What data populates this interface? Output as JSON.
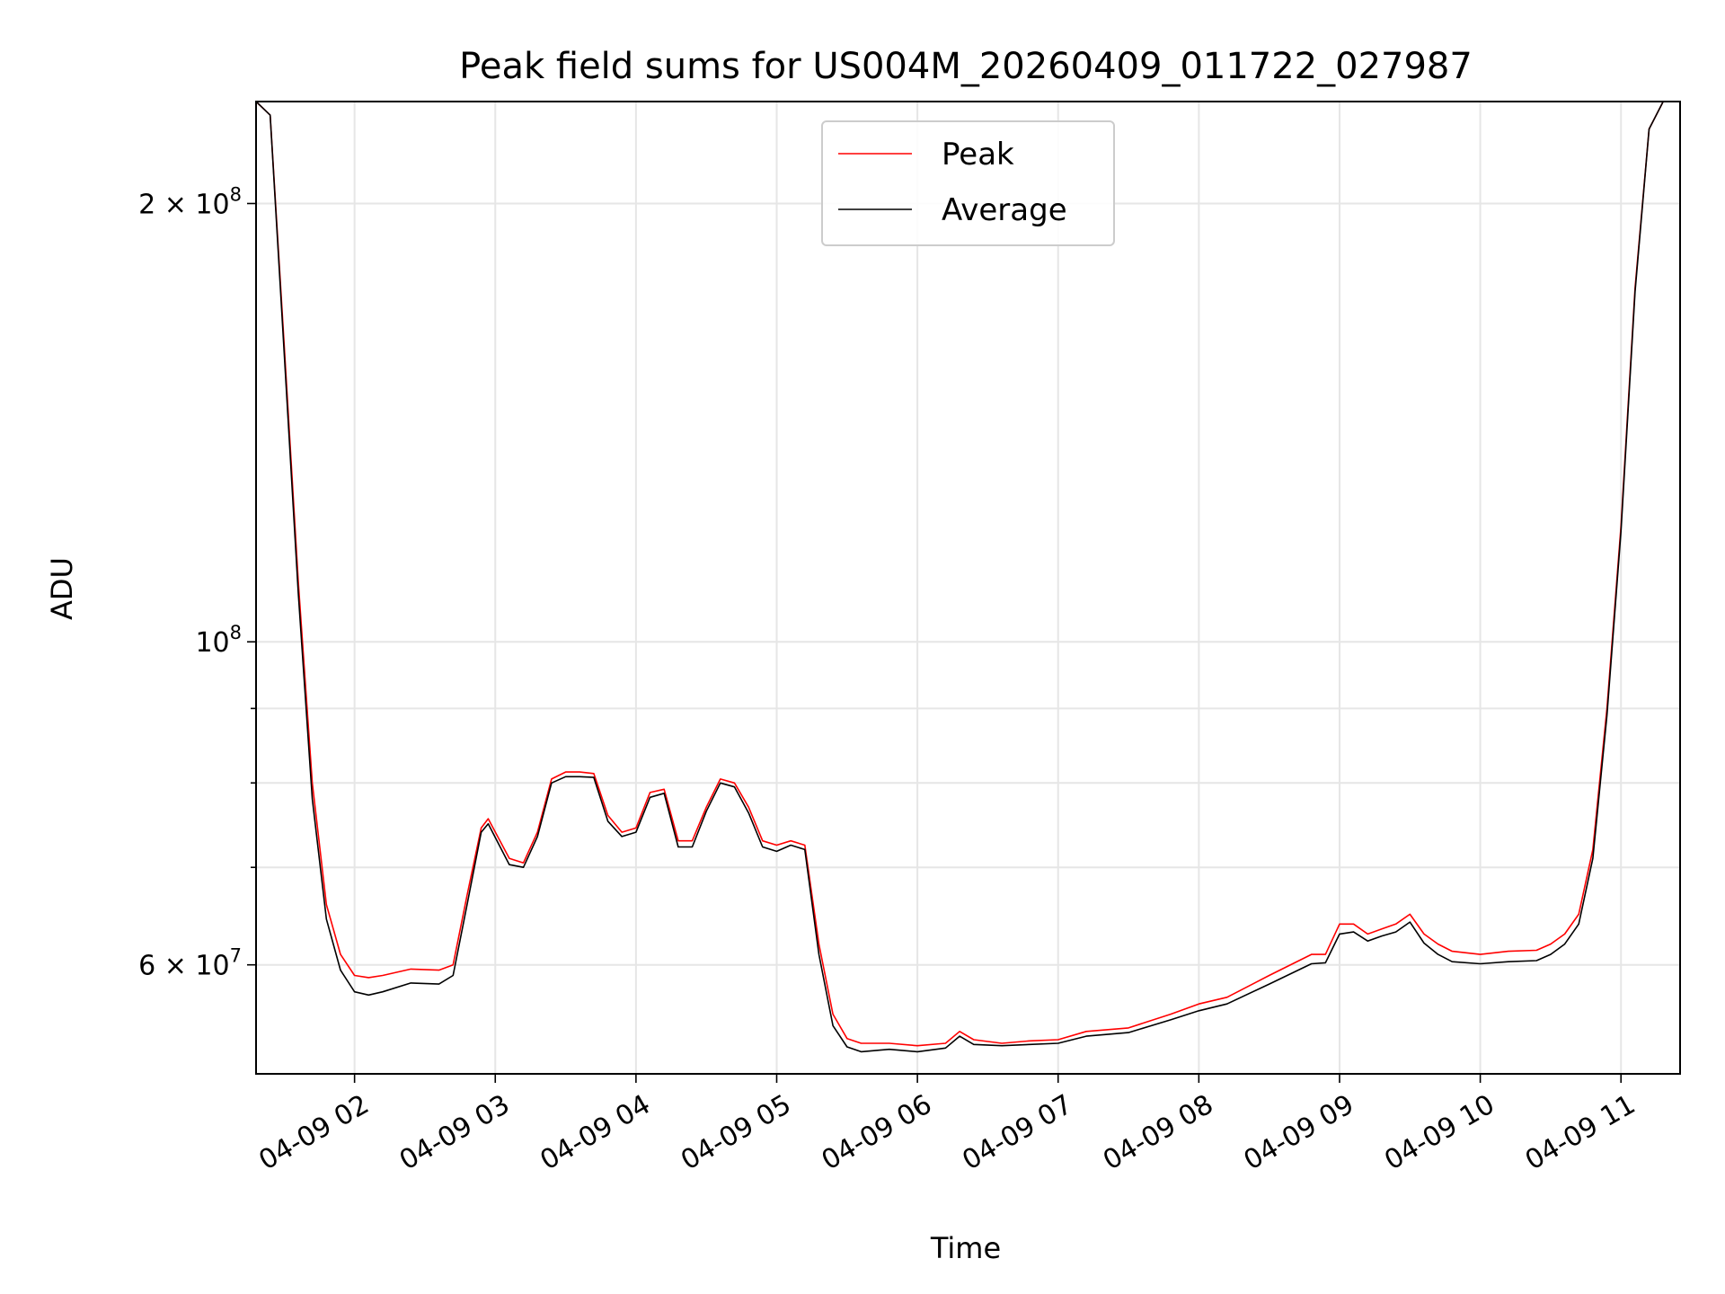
{
  "chart_data": {
    "type": "line",
    "title": "Peak field sums for US004M_20260409_011722_027987",
    "xlabel": "Time",
    "ylabel": "ADU",
    "y_scale": "log",
    "xlim": [
      1.3,
      11.42
    ],
    "ylim": [
      50500000,
      235000000
    ],
    "grid": true,
    "legend_position": "upper-center",
    "x_unit": "hours since 04-09 00:00",
    "x_ticks": [
      {
        "value": 2,
        "label": "04-09 02"
      },
      {
        "value": 3,
        "label": "04-09 03"
      },
      {
        "value": 4,
        "label": "04-09 04"
      },
      {
        "value": 5,
        "label": "04-09 05"
      },
      {
        "value": 6,
        "label": "04-09 06"
      },
      {
        "value": 7,
        "label": "04-09 07"
      },
      {
        "value": 8,
        "label": "04-09 08"
      },
      {
        "value": 9,
        "label": "04-09 09"
      },
      {
        "value": 10,
        "label": "04-09 10"
      },
      {
        "value": 11,
        "label": "04-09 11"
      }
    ],
    "y_ticks_major": [
      {
        "value": 100000000,
        "label_base": "10",
        "label_exp": "8",
        "label_coef": ""
      },
      {
        "value": 200000000,
        "label_base": "10",
        "label_exp": "8",
        "label_coef": "2 × "
      },
      {
        "value": 60000000,
        "label_base": "10",
        "label_exp": "7",
        "label_coef": "6 × "
      }
    ],
    "y_ticks_minor": [
      70000000,
      80000000,
      90000000
    ],
    "series": [
      {
        "name": "Peak",
        "color": "#ff0000",
        "x": [
          1.3,
          1.4,
          1.5,
          1.6,
          1.7,
          1.8,
          1.9,
          2.0,
          2.1,
          2.2,
          2.4,
          2.6,
          2.7,
          2.8,
          2.9,
          2.95,
          3.1,
          3.2,
          3.3,
          3.4,
          3.5,
          3.6,
          3.7,
          3.8,
          3.9,
          4.0,
          4.1,
          4.2,
          4.3,
          4.4,
          4.5,
          4.6,
          4.7,
          4.8,
          4.9,
          5.0,
          5.1,
          5.2,
          5.3,
          5.4,
          5.5,
          5.6,
          5.8,
          6.0,
          6.2,
          6.3,
          6.4,
          6.6,
          6.8,
          7.0,
          7.2,
          7.5,
          7.8,
          8.0,
          8.2,
          8.5,
          8.8,
          8.9,
          9.0,
          9.1,
          9.2,
          9.3,
          9.4,
          9.5,
          9.6,
          9.7,
          9.8,
          10.0,
          10.2,
          10.4,
          10.5,
          10.6,
          10.7,
          10.8,
          10.9,
          11.0,
          11.1,
          11.2,
          11.3,
          11.42
        ],
        "y": [
          235000000,
          230000000,
          160000000,
          110000000,
          80000000,
          66000000,
          61000000,
          59000000,
          58800000,
          59000000,
          59600000,
          59500000,
          60000000,
          67000000,
          74500000,
          75600000,
          71000000,
          70500000,
          74000000,
          80500000,
          81400000,
          81400000,
          81200000,
          76000000,
          74000000,
          74500000,
          78800000,
          79200000,
          73000000,
          73000000,
          77000000,
          80500000,
          80000000,
          77000000,
          73000000,
          72500000,
          73000000,
          72500000,
          62000000,
          55500000,
          53400000,
          53000000,
          53000000,
          52800000,
          53000000,
          54000000,
          53300000,
          53000000,
          53200000,
          53300000,
          54000000,
          54300000,
          55500000,
          56400000,
          57000000,
          59000000,
          61000000,
          61000000,
          64000000,
          64000000,
          63000000,
          63500000,
          64000000,
          65000000,
          63000000,
          62000000,
          61300000,
          61000000,
          61300000,
          61400000,
          62000000,
          63000000,
          65000000,
          72000000,
          90000000,
          120000000,
          175000000,
          225000000,
          235000000,
          235000000
        ]
      },
      {
        "name": "Average",
        "color": "#000000",
        "x": [
          1.3,
          1.4,
          1.5,
          1.6,
          1.7,
          1.8,
          1.9,
          2.0,
          2.1,
          2.2,
          2.4,
          2.6,
          2.7,
          2.8,
          2.9,
          2.95,
          3.1,
          3.2,
          3.3,
          3.4,
          3.5,
          3.6,
          3.7,
          3.8,
          3.9,
          4.0,
          4.1,
          4.2,
          4.3,
          4.4,
          4.5,
          4.6,
          4.7,
          4.8,
          4.9,
          5.0,
          5.1,
          5.2,
          5.3,
          5.4,
          5.5,
          5.6,
          5.8,
          6.0,
          6.2,
          6.3,
          6.4,
          6.6,
          6.8,
          7.0,
          7.2,
          7.5,
          7.8,
          8.0,
          8.2,
          8.5,
          8.8,
          8.9,
          9.0,
          9.1,
          9.2,
          9.3,
          9.4,
          9.5,
          9.6,
          9.7,
          9.8,
          10.0,
          10.2,
          10.4,
          10.5,
          10.6,
          10.7,
          10.8,
          10.9,
          11.0,
          11.1,
          11.2,
          11.3,
          11.42
        ],
        "y": [
          235000000,
          230000000,
          158000000,
          108000000,
          78000000,
          64500000,
          59500000,
          57500000,
          57200000,
          57500000,
          58300000,
          58200000,
          59000000,
          66000000,
          74000000,
          75000000,
          70300000,
          70000000,
          73500000,
          80000000,
          80800000,
          80800000,
          80700000,
          75300000,
          73500000,
          74000000,
          78200000,
          78700000,
          72300000,
          72300000,
          76500000,
          80000000,
          79500000,
          76300000,
          72300000,
          71800000,
          72500000,
          72000000,
          61000000,
          54500000,
          52700000,
          52300000,
          52500000,
          52300000,
          52600000,
          53600000,
          52900000,
          52800000,
          52900000,
          53000000,
          53600000,
          53900000,
          55000000,
          55800000,
          56400000,
          58200000,
          60100000,
          60200000,
          63000000,
          63200000,
          62300000,
          62800000,
          63200000,
          64200000,
          62100000,
          61000000,
          60300000,
          60100000,
          60300000,
          60400000,
          61000000,
          62000000,
          64000000,
          71000000,
          89000000,
          119000000,
          174000000,
          225000000,
          235000000,
          235000000
        ]
      }
    ]
  }
}
